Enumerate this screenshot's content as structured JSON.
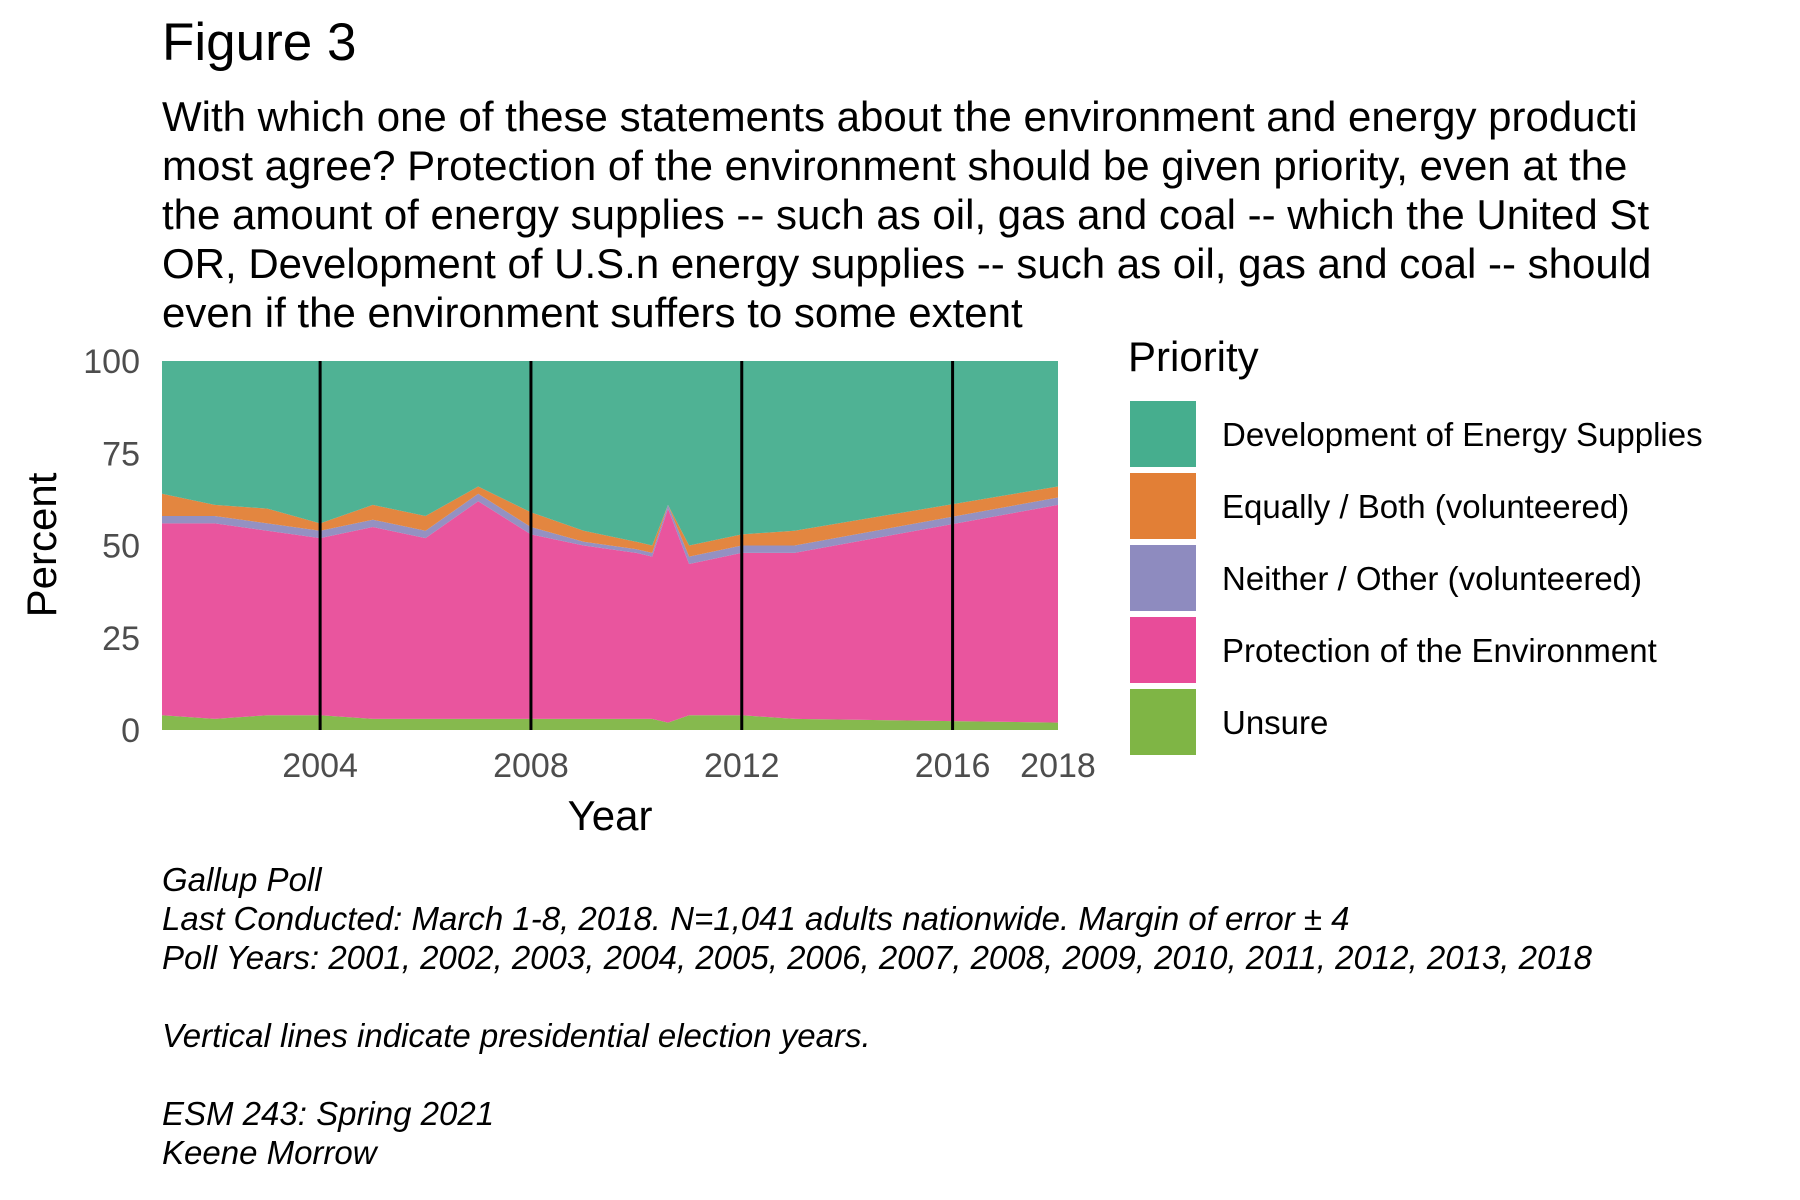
{
  "title": "Figure 3",
  "subtitle_lines": [
    "With which one of these statements about the environment and energy producti",
    "most agree? Protection of the environment should be given priority, even at the",
    "the amount of energy supplies -- such as oil, gas and coal -- which the United St",
    "OR, Development of U.S.n energy supplies -- such as oil, gas and coal -- should",
    "even if the environment suffers to some extent"
  ],
  "caption_lines": [
    "Gallup Poll",
    "Last Conducted: March 1-8, 2018. N=1,041 adults nationwide. Margin of error ± 4",
    "Poll Years: 2001, 2002, 2003, 2004, 2005, 2006, 2007, 2008, 2009, 2010, 2011, 2012, 2013, 2018",
    "",
    "Vertical lines indicate presidential election years.",
    "",
    "ESM 243: Spring 2021",
    "Keene Morrow"
  ],
  "chart_data": {
    "type": "area",
    "stacked": true,
    "xlabel": "Year",
    "ylabel": "Percent",
    "xlim": [
      2001,
      2018
    ],
    "ylim": [
      0,
      100
    ],
    "x_ticks": [
      2004,
      2008,
      2012,
      2016,
      2018
    ],
    "y_ticks": [
      0,
      25,
      50,
      75,
      100
    ],
    "vertical_lines": [
      2004,
      2008,
      2012,
      2016
    ],
    "grid": false,
    "legend_title": "Priority",
    "legend_position": "right",
    "x": [
      2001,
      2002,
      2003,
      2004,
      2005,
      2006,
      2007,
      2008,
      2009,
      2010,
      2010.3,
      2010.6,
      2011,
      2012,
      2013,
      2018
    ],
    "series": [
      {
        "name": "Unsure",
        "color": "#7fb545",
        "values": [
          4,
          3,
          4,
          4,
          3,
          3,
          3,
          3,
          3,
          3,
          3,
          2,
          4,
          4,
          3,
          2
        ]
      },
      {
        "name": "Protection of the Environment",
        "color": "#e84c99",
        "values": [
          52,
          53,
          50,
          48,
          52,
          49,
          59,
          50,
          47,
          45,
          44,
          58,
          41,
          44,
          45,
          59
        ]
      },
      {
        "name": "Neither / Other (volunteered)",
        "color": "#8e8bbf",
        "values": [
          2,
          2,
          2,
          2,
          2,
          2,
          2,
          2,
          1,
          1,
          1,
          1,
          2,
          2,
          2,
          2
        ]
      },
      {
        "name": "Equally / Both (volunteered)",
        "color": "#e27f36",
        "values": [
          6,
          3,
          4,
          2,
          4,
          4,
          2,
          4,
          3,
          2,
          2,
          0,
          3,
          3,
          4,
          3
        ]
      },
      {
        "name": "Development of Energy Supplies",
        "color": "#46ae8e",
        "values": [
          36,
          39,
          40,
          44,
          39,
          42,
          34,
          41,
          46,
          49,
          50,
          39,
          50,
          47,
          46,
          34
        ]
      }
    ],
    "legend_order": [
      "Development of Energy Supplies",
      "Equally / Both (volunteered)",
      "Neither / Other (volunteered)",
      "Protection of the Environment",
      "Unsure"
    ]
  }
}
